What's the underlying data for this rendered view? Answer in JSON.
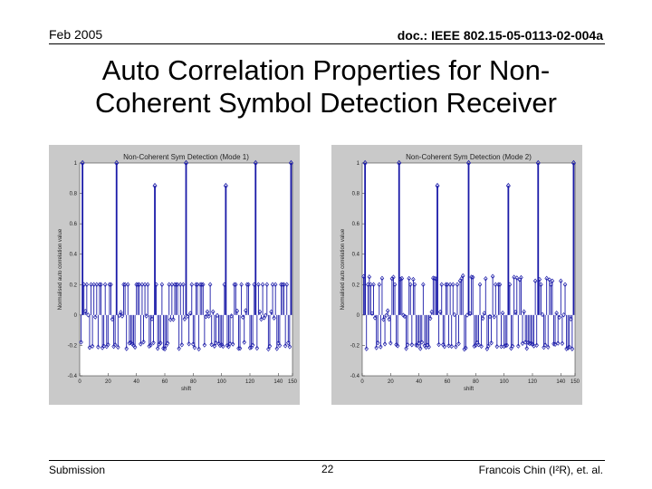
{
  "header": {
    "date": "Feb 2005",
    "doc_id": "doc.: IEEE 802.15-05-0113-02-004a"
  },
  "slide": {
    "title_line1": "Auto Correlation Properties for Non-",
    "title_line2": "Coherent Symbol Detection Receiver"
  },
  "footer": {
    "left": "Submission",
    "page": "22",
    "right": "Francois Chin (I²R), et. al."
  },
  "chart_data": [
    {
      "type": "scatter",
      "title": "Non-Coherent Sym Detection (Mode 1)",
      "xlabel": "shift",
      "ylabel": "Normalised auto correlation value",
      "xlim": [
        0,
        150
      ],
      "ylim": [
        -0.4,
        1.0
      ],
      "xticks": [
        "0",
        "20",
        "40",
        "60",
        "80",
        "100",
        "120",
        "140",
        "150"
      ],
      "yticks": [
        "1",
        "0.8",
        "0.6",
        "0.4",
        "0.2",
        "0",
        "-0.2",
        "-0.4"
      ],
      "grid": false,
      "peaks": [
        {
          "x": 2,
          "y": 1.0
        },
        {
          "x": 26,
          "y": 1.0
        },
        {
          "x": 53,
          "y": 0.85
        },
        {
          "x": 75,
          "y": 1.0
        },
        {
          "x": 103,
          "y": 0.85
        },
        {
          "x": 124,
          "y": 1.0
        },
        {
          "x": 149,
          "y": 1.0
        }
      ],
      "baseline_levels": [
        0.2,
        0.0,
        -0.2
      ],
      "marker": "diamond",
      "color": "#1a1aa8"
    },
    {
      "type": "scatter",
      "title": "Non-Coherent Sym Detection (Mode 2)",
      "xlabel": "shift",
      "ylabel": "Normalised auto correlation value",
      "xlim": [
        0,
        150
      ],
      "ylim": [
        -0.4,
        1.0
      ],
      "xticks": [
        "0",
        "20",
        "40",
        "60",
        "80",
        "100",
        "120",
        "140",
        "150"
      ],
      "yticks": [
        "1",
        "0.8",
        "0.6",
        "0.4",
        "0.2",
        "0",
        "-0.2",
        "-0.4"
      ],
      "grid": false,
      "peaks": [
        {
          "x": 2,
          "y": 1.0
        },
        {
          "x": 26,
          "y": 1.0
        },
        {
          "x": 53,
          "y": 0.85
        },
        {
          "x": 75,
          "y": 1.0
        },
        {
          "x": 103,
          "y": 0.85
        },
        {
          "x": 124,
          "y": 1.0
        },
        {
          "x": 149,
          "y": 1.0
        }
      ],
      "baseline_levels": [
        0.2,
        0.0,
        -0.2
      ],
      "marker": "diamond",
      "color": "#1a1aa8"
    }
  ]
}
